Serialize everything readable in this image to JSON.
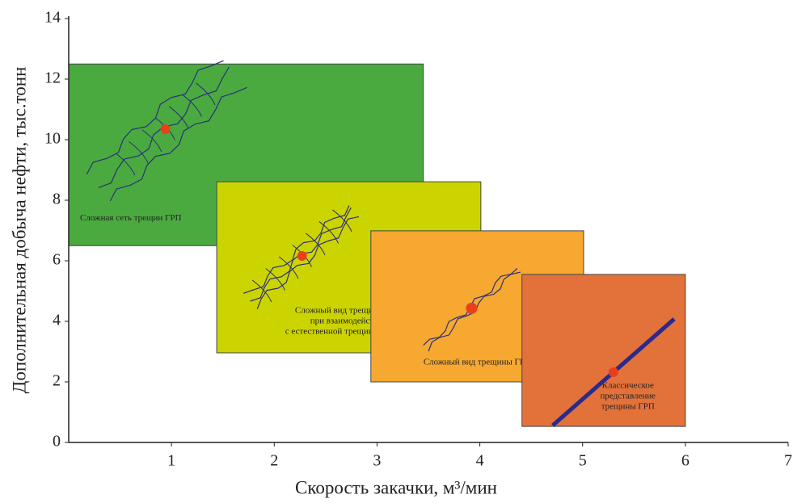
{
  "chart_data": {
    "type": "scatter",
    "x_label": "Скорость закачки, м³/мин",
    "y_label": "Дополнительная добыча нефти, тыс.тонн",
    "xlim": [
      0,
      7
    ],
    "ylim": [
      0,
      14
    ],
    "xticks": [
      1,
      2,
      3,
      4,
      5,
      6,
      7
    ],
    "yticks": [
      0,
      2,
      4,
      6,
      8,
      10,
      12,
      14
    ],
    "regions": [
      {
        "label": [
          "Сложная сеть трещин ГРП"
        ],
        "color": "#4aaa3f",
        "x": [
          0,
          3.45
        ],
        "y": [
          6.5,
          12.5
        ]
      },
      {
        "label": [
          "Сложный вид трещины ГРП",
          "при взаимодействии",
          "с естественной трещиноватостью"
        ],
        "color": "#ccd400",
        "x": [
          1.44,
          4.01
        ],
        "y": [
          2.96,
          8.61
        ]
      },
      {
        "label": [
          "Сложный вид трещины ГРП"
        ],
        "color": "#f6a830",
        "x": [
          2.94,
          5.01
        ],
        "y": [
          2.0,
          6.99
        ]
      },
      {
        "label": [
          "Классическое",
          "представление",
          "трещины ГРП"
        ],
        "color": "#e2723a",
        "x": [
          4.41,
          6.0
        ],
        "y": [
          0.53,
          5.55
        ]
      }
    ],
    "x": [
      0.94,
      2.27,
      3.92,
      5.3
    ],
    "values": [
      10.35,
      6.16,
      4.43,
      2.32
    ],
    "color": "#e8401c"
  }
}
